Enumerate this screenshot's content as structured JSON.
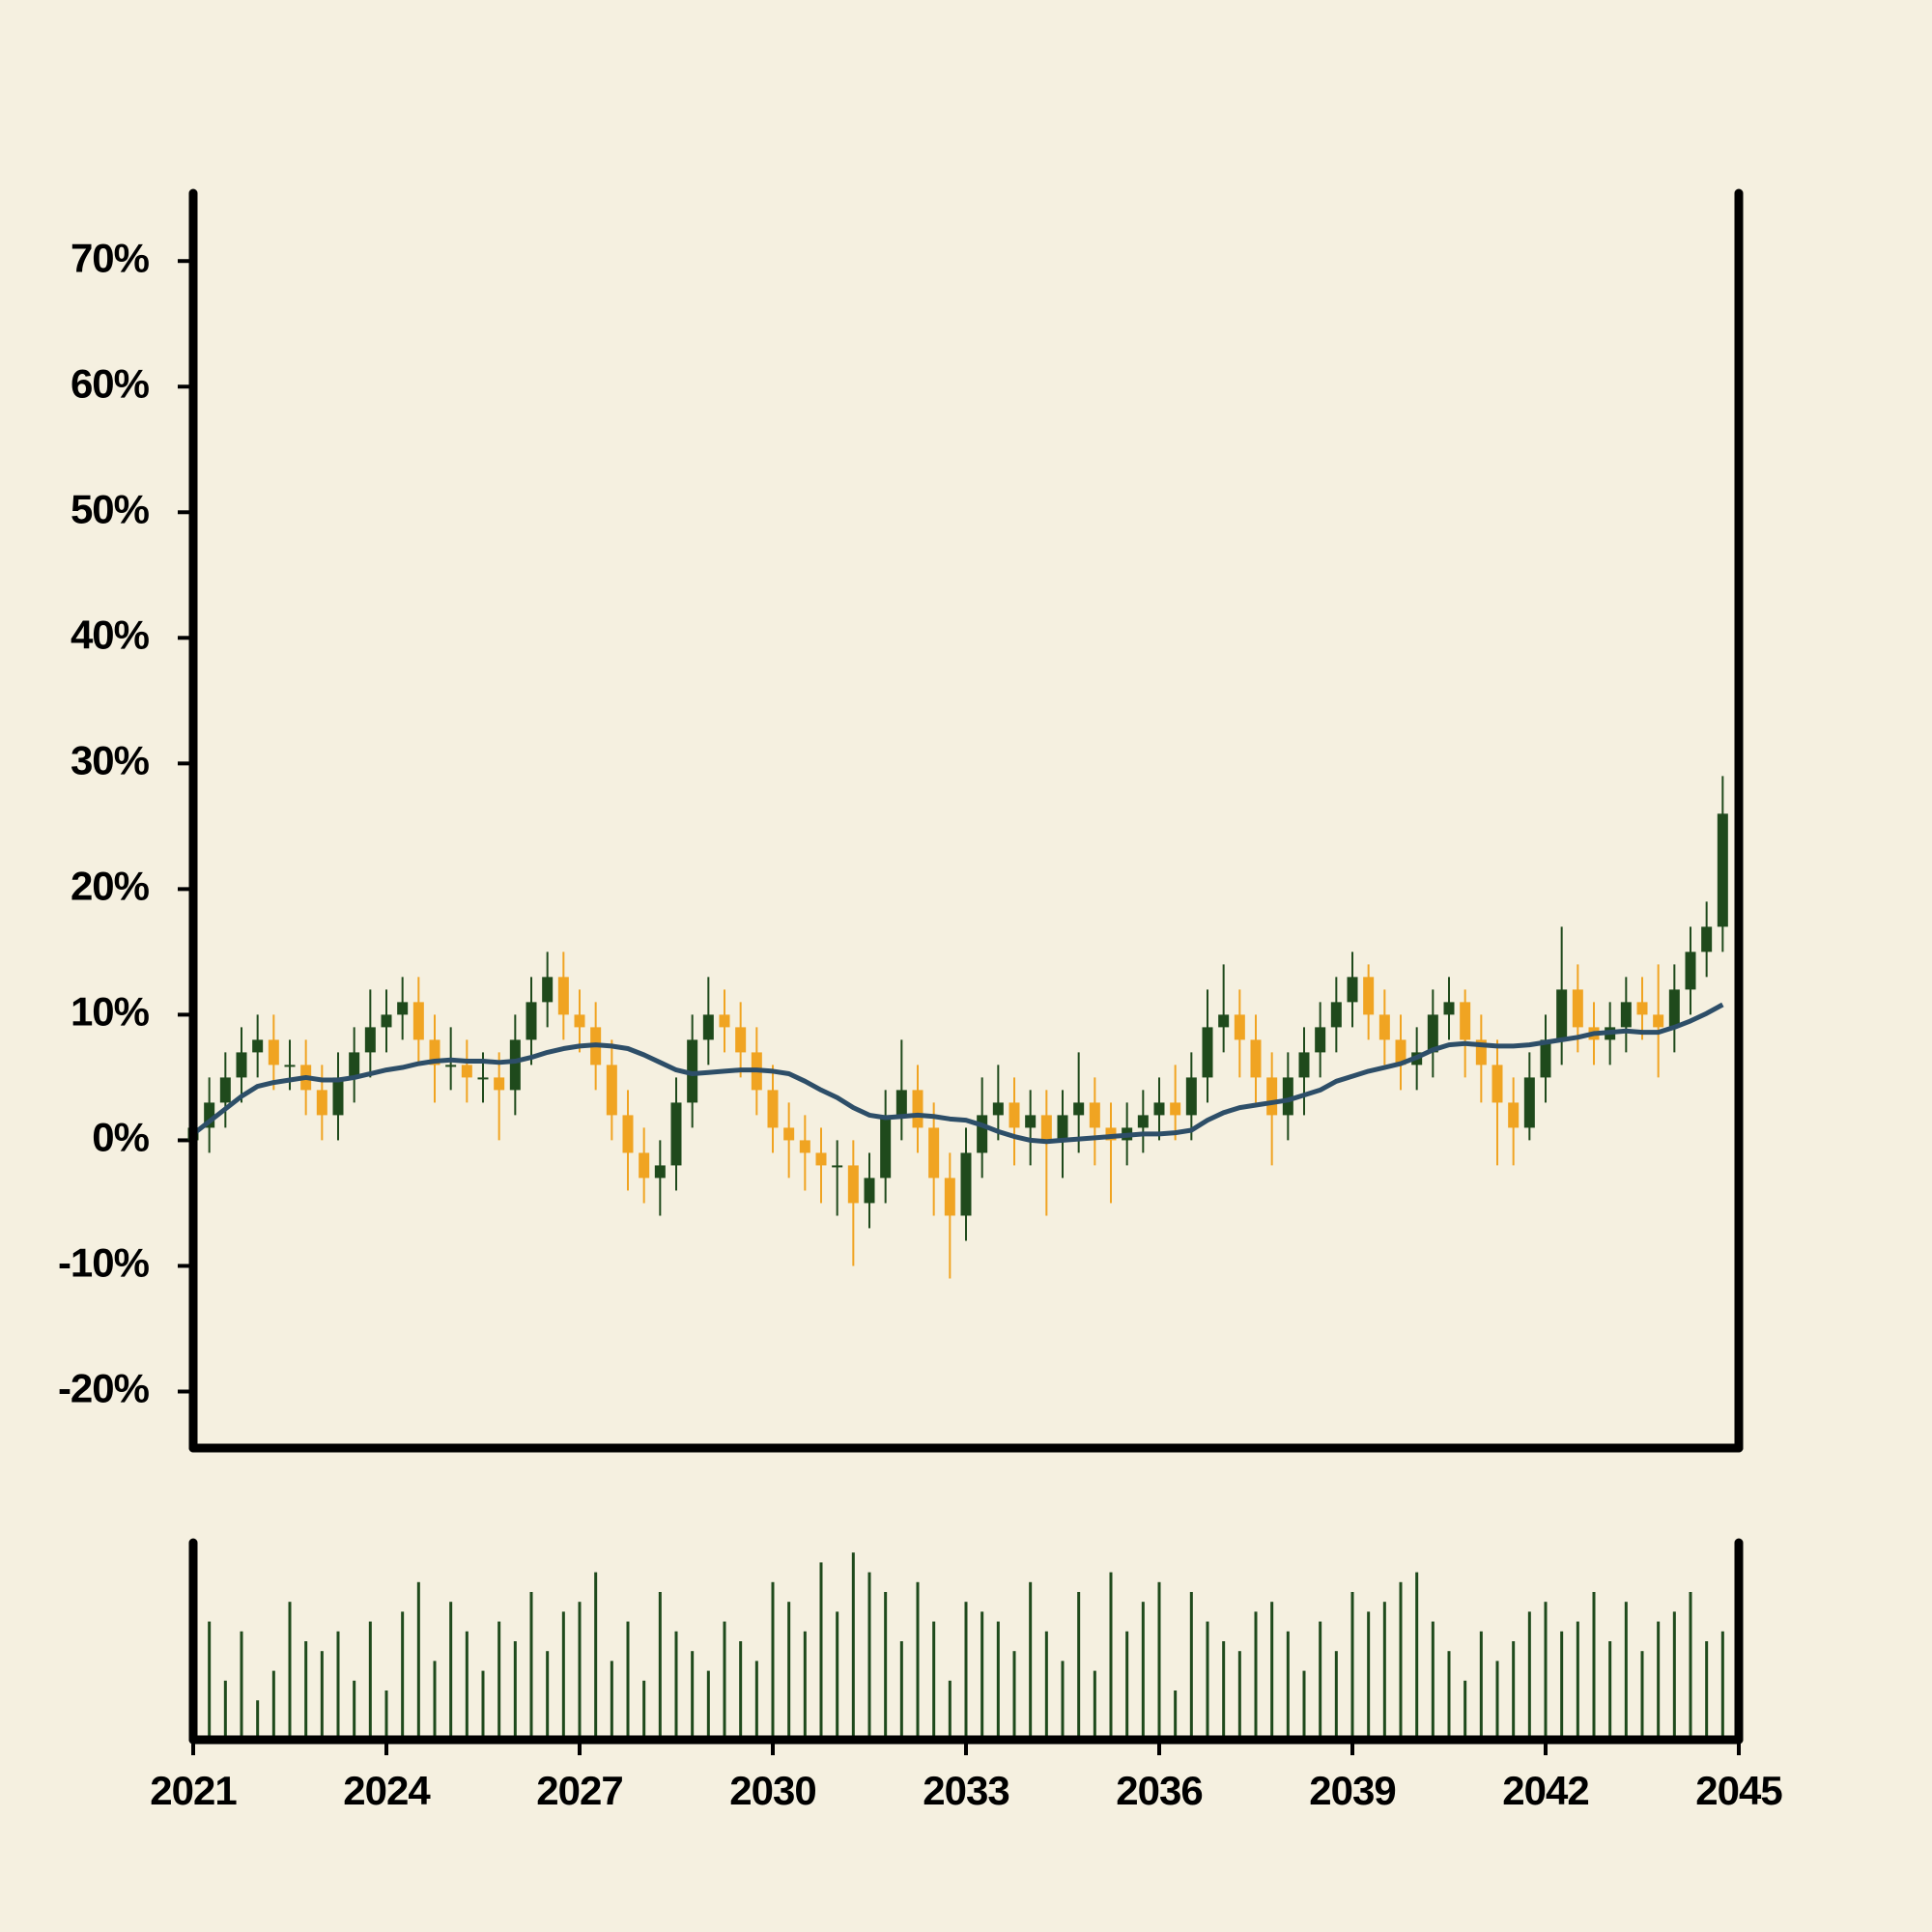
{
  "chart_data": {
    "type": "candlestick",
    "x": [
      2021,
      2021.25,
      2021.5,
      2021.75,
      2022,
      2022.25,
      2022.5,
      2022.75,
      2023,
      2023.25,
      2023.5,
      2023.75,
      2024,
      2024.25,
      2024.5,
      2024.75,
      2025,
      2025.25,
      2025.5,
      2025.75,
      2026,
      2026.25,
      2026.5,
      2026.75,
      2027,
      2027.25,
      2027.5,
      2027.75,
      2028,
      2028.25,
      2028.5,
      2028.75,
      2029,
      2029.25,
      2029.5,
      2029.75,
      2030,
      2030.25,
      2030.5,
      2030.75,
      2031,
      2031.25,
      2031.5,
      2031.75,
      2032,
      2032.25,
      2032.5,
      2032.75,
      2033,
      2033.25,
      2033.5,
      2033.75,
      2034,
      2034.25,
      2034.5,
      2034.75,
      2035,
      2035.25,
      2035.5,
      2035.75,
      2036,
      2036.25,
      2036.5,
      2036.75,
      2037,
      2037.25,
      2037.5,
      2037.75,
      2038,
      2038.25,
      2038.5,
      2038.75,
      2039,
      2039.25,
      2039.5,
      2039.75,
      2040,
      2040.25,
      2040.5,
      2040.75,
      2041,
      2041.25,
      2041.5,
      2041.75,
      2042,
      2042.25,
      2042.5,
      2042.75,
      2043,
      2043.25,
      2043.5,
      2043.75,
      2044,
      2044.25,
      2044.5,
      2044.75
    ],
    "open": [
      0,
      1,
      3,
      5,
      7,
      8,
      6,
      6,
      4,
      2,
      5,
      7,
      9,
      10,
      11,
      8,
      6,
      6,
      5,
      5,
      4,
      8,
      11,
      13,
      10,
      9,
      6,
      2,
      -1,
      -3,
      -2,
      3,
      8,
      10,
      9,
      7,
      4,
      1,
      0,
      -1,
      -2,
      -2,
      -5,
      -3,
      2,
      4,
      1,
      -3,
      -6,
      -1,
      2,
      3,
      1,
      2,
      0,
      2,
      3,
      1,
      0,
      1,
      2,
      3,
      2,
      5,
      9,
      10,
      8,
      5,
      2,
      5,
      7,
      9,
      11,
      13,
      10,
      8,
      6,
      7,
      10,
      11,
      8,
      6,
      3,
      1,
      5,
      8,
      12,
      9,
      8,
      9,
      11,
      10,
      9,
      12,
      15,
      17
    ],
    "high": [
      3,
      5,
      7,
      9,
      10,
      10,
      8,
      8,
      6,
      7,
      9,
      12,
      12,
      13,
      13,
      10,
      9,
      8,
      7,
      7,
      10,
      13,
      15,
      15,
      12,
      11,
      8,
      4,
      1,
      0,
      5,
      10,
      13,
      12,
      11,
      9,
      6,
      3,
      2,
      1,
      0,
      0,
      -1,
      4,
      8,
      6,
      3,
      -1,
      1,
      5,
      6,
      5,
      4,
      4,
      4,
      7,
      5,
      3,
      3,
      4,
      5,
      6,
      7,
      12,
      14,
      12,
      10,
      7,
      7,
      9,
      11,
      13,
      15,
      14,
      12,
      10,
      9,
      12,
      13,
      12,
      10,
      8,
      5,
      7,
      10,
      17,
      14,
      11,
      11,
      13,
      13,
      14,
      14,
      17,
      19,
      29
    ],
    "low": [
      -3,
      -1,
      1,
      3,
      5,
      4,
      4,
      2,
      0,
      0,
      3,
      5,
      7,
      8,
      6,
      3,
      4,
      3,
      3,
      0,
      2,
      6,
      9,
      8,
      7,
      4,
      0,
      -4,
      -5,
      -6,
      -4,
      1,
      6,
      7,
      5,
      2,
      -1,
      -3,
      -4,
      -5,
      -6,
      -10,
      -7,
      -5,
      0,
      -1,
      -6,
      -11,
      -8,
      -3,
      0,
      -2,
      -2,
      -6,
      -3,
      -1,
      -2,
      -5,
      -2,
      -1,
      0,
      0,
      0,
      3,
      7,
      5,
      3,
      -2,
      0,
      2,
      5,
      7,
      9,
      8,
      6,
      4,
      4,
      5,
      8,
      5,
      3,
      -2,
      -2,
      0,
      3,
      6,
      7,
      6,
      6,
      7,
      8,
      5,
      7,
      10,
      13,
      15
    ],
    "close": [
      1,
      3,
      5,
      7,
      8,
      6,
      6,
      4,
      2,
      5,
      7,
      9,
      10,
      11,
      8,
      6,
      6,
      5,
      5,
      4,
      8,
      11,
      13,
      10,
      9,
      6,
      2,
      -1,
      -3,
      -2,
      3,
      8,
      10,
      9,
      7,
      4,
      1,
      0,
      -1,
      -2,
      -2,
      -5,
      -3,
      2,
      4,
      1,
      -3,
      -6,
      -1,
      2,
      3,
      1,
      2,
      0,
      2,
      3,
      1,
      0,
      1,
      2,
      3,
      2,
      5,
      9,
      10,
      8,
      5,
      2,
      5,
      7,
      9,
      11,
      13,
      10,
      8,
      6,
      7,
      10,
      11,
      8,
      6,
      3,
      1,
      5,
      8,
      12,
      9,
      8,
      9,
      11,
      10,
      9,
      12,
      15,
      17,
      26
    ],
    "up_color": "#1f4a1c",
    "down_color": "#f0a422",
    "ma": {
      "color": "#2d4e68",
      "values": [
        0.5,
        1.5,
        2.5,
        3.5,
        4.3,
        4.6,
        4.8,
        5.0,
        4.8,
        4.8,
        5.0,
        5.3,
        5.6,
        5.8,
        6.1,
        6.3,
        6.4,
        6.3,
        6.3,
        6.2,
        6.3,
        6.6,
        7.0,
        7.3,
        7.5,
        7.6,
        7.5,
        7.3,
        6.8,
        6.2,
        5.6,
        5.3,
        5.4,
        5.5,
        5.6,
        5.6,
        5.5,
        5.3,
        4.7,
        4.0,
        3.4,
        2.6,
        2.0,
        1.8,
        1.9,
        2.0,
        1.9,
        1.7,
        1.6,
        1.2,
        0.7,
        0.3,
        0.0,
        -0.1,
        0.0,
        0.1,
        0.2,
        0.3,
        0.4,
        0.5,
        0.5,
        0.6,
        0.8,
        1.6,
        2.2,
        2.6,
        2.8,
        3.0,
        3.2,
        3.6,
        4.0,
        4.7,
        5.1,
        5.5,
        5.8,
        6.1,
        6.6,
        7.2,
        7.6,
        7.7,
        7.6,
        7.5,
        7.5,
        7.6,
        7.8,
        8.0,
        8.2,
        8.5,
        8.6,
        8.7,
        8.6,
        8.6,
        9.0,
        9.5,
        10.1,
        10.8
      ]
    },
    "volume": {
      "color": "#1f4a1c",
      "ylim": [
        0,
        100
      ],
      "values": [
        90,
        60,
        30,
        55,
        20,
        35,
        70,
        50,
        45,
        55,
        30,
        60,
        25,
        65,
        80,
        40,
        70,
        55,
        35,
        60,
        50,
        75,
        45,
        65,
        70,
        85,
        40,
        60,
        30,
        75,
        55,
        45,
        35,
        60,
        50,
        40,
        80,
        70,
        55,
        90,
        65,
        95,
        85,
        75,
        50,
        80,
        60,
        30,
        70,
        65,
        60,
        45,
        80,
        55,
        40,
        75,
        35,
        85,
        55,
        70,
        80,
        25,
        75,
        60,
        50,
        45,
        65,
        70,
        55,
        35,
        60,
        45,
        75,
        65,
        70,
        80,
        85,
        60,
        45,
        30,
        55,
        40,
        50,
        65,
        70,
        55,
        60,
        75,
        50,
        70,
        45,
        60,
        65,
        75,
        50,
        55
      ]
    },
    "xlim": [
      2021,
      2045
    ],
    "xticks": [
      2021,
      2024,
      2027,
      2030,
      2033,
      2036,
      2039,
      2042,
      2045
    ],
    "ylim": [
      -24.5,
      75.4
    ],
    "yticks": [
      {
        "value": -20,
        "label": "-20%"
      },
      {
        "value": -10,
        "label": "-10%"
      },
      {
        "value": 0,
        "label": "0%"
      },
      {
        "value": 10,
        "label": "10%"
      },
      {
        "value": 20,
        "label": "20%"
      },
      {
        "value": 30,
        "label": "30%"
      },
      {
        "value": 40,
        "label": "40%"
      },
      {
        "value": 50,
        "label": "50%"
      },
      {
        "value": 60,
        "label": "60%"
      },
      {
        "value": 70,
        "label": "70%"
      }
    ]
  }
}
